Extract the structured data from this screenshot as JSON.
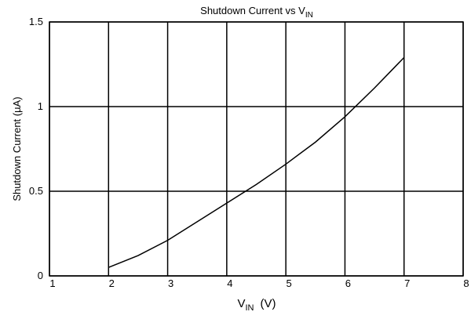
{
  "chart_data": {
    "type": "line",
    "title": "Shutdown Current vs V",
    "title_subscript": "IN",
    "x_label": "V",
    "x_label_subscript": "IN",
    "x_label_unit": "(V)",
    "y_label": "Shutdown Current (µA)",
    "x": [
      2,
      2.5,
      3,
      3.5,
      4,
      4.5,
      5,
      5.5,
      6,
      6.5,
      6.75,
      7
    ],
    "values": [
      0.05,
      0.12,
      0.21,
      0.32,
      0.43,
      0.54,
      0.66,
      0.79,
      0.94,
      1.11,
      1.2,
      1.29
    ],
    "color": "#000000",
    "xlim": [
      1,
      8
    ],
    "xticks": [
      1,
      2,
      3,
      4,
      5,
      6,
      7,
      8
    ],
    "ylim": [
      0,
      1.5
    ],
    "yticks": [
      0,
      0.5,
      1,
      1.5
    ],
    "grid": true
  }
}
